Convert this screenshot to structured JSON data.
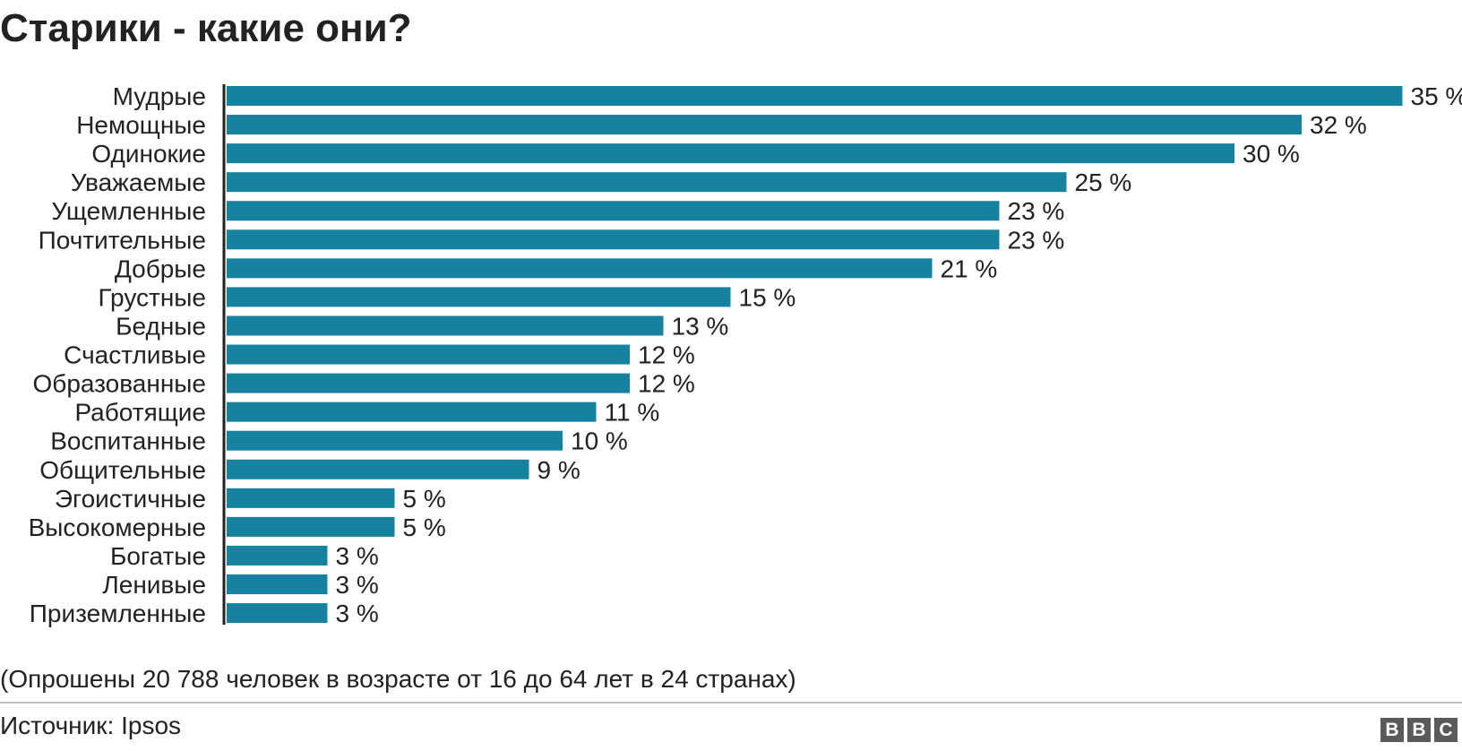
{
  "title": "Старики - какие они?",
  "note": "(Опрошены 20 788 человек в возрасте от 16 до 64 лет в 24 странах)",
  "source": "Источник: Ipsos",
  "logo": {
    "letters": [
      "B",
      "B",
      "C"
    ]
  },
  "colors": {
    "bar": "#1782a0",
    "axis": "#222222",
    "text": "#222222",
    "divider": "#bcbcbc",
    "logo_block": "#5a5a5a"
  },
  "chart_data": {
    "type": "bar",
    "orientation": "horizontal",
    "title": "Старики - какие они?",
    "xlabel": "",
    "ylabel": "",
    "value_suffix": " %",
    "xlim": [
      0,
      35
    ],
    "grid": false,
    "legend": "none",
    "categories": [
      "Мудрые",
      "Немощные",
      "Одинокие",
      "Уважаемые",
      "Ущемленные",
      "Почтительные",
      "Добрые",
      "Грустные",
      "Бедные",
      "Счастливые",
      "Образованные",
      "Работящие",
      "Воспитанные",
      "Общительные",
      "Эгоистичные",
      "Высокомерные",
      "Богатые",
      "Ленивые",
      "Приземленные"
    ],
    "values": [
      35,
      32,
      30,
      25,
      23,
      23,
      21,
      15,
      13,
      12,
      12,
      11,
      10,
      9,
      5,
      5,
      3,
      3,
      3
    ]
  }
}
